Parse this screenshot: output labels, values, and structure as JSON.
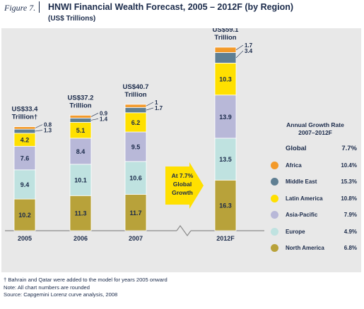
{
  "figure": {
    "label": "Figure 7.",
    "title": "HNWI Financial Wealth Forecast, 2005 – 2012F (by Region)",
    "subtitle": "(US$ Trillions)"
  },
  "chart_data": {
    "type": "bar",
    "stacked": true,
    "title": "HNWI Financial Wealth Forecast, 2005 – 2012F (by Region)",
    "subtitle": "(US$ Trillions)",
    "categories": [
      "2005",
      "2006",
      "2007",
      "2012F"
    ],
    "totals": [
      {
        "line1": "US$33.4",
        "line2": "Trillion†"
      },
      {
        "line1": "US$37.2",
        "line2": "Trillion"
      },
      {
        "line1": "US$40.7",
        "line2": "Trillion"
      },
      {
        "line1": "US$59.1",
        "line2": "Trillion"
      }
    ],
    "series": [
      {
        "name": "North America",
        "color": "#b8a23a",
        "values": [
          10.2,
          11.3,
          11.7,
          16.3
        ]
      },
      {
        "name": "Europe",
        "color": "#bfe2e0",
        "values": [
          9.4,
          10.1,
          10.6,
          13.5
        ]
      },
      {
        "name": "Asia-Pacific",
        "color": "#b8b8d8",
        "values": [
          7.6,
          8.4,
          9.5,
          13.9
        ]
      },
      {
        "name": "Latin America",
        "color": "#ffe000",
        "values": [
          4.2,
          5.1,
          6.2,
          10.3
        ]
      },
      {
        "name": "Middle East",
        "color": "#5f7f93",
        "values": [
          1.3,
          1.4,
          1.7,
          3.4
        ]
      },
      {
        "name": "Africa",
        "color": "#f39a2a",
        "values": [
          0.8,
          0.9,
          1.0,
          1.7
        ]
      }
    ],
    "growth_arrow": {
      "line1": "At 7.7%",
      "line2": "Global",
      "line3": "Growth",
      "color": "#ffe000"
    },
    "legend_placement": "right",
    "grid": false
  },
  "legend": {
    "title_line1": "Annual Growth Rate",
    "title_line2": "2007–2012F",
    "global_label": "Global",
    "global_rate": "7.7%",
    "items": [
      {
        "name": "Africa",
        "rate": "10.4%",
        "color": "#f39a2a"
      },
      {
        "name": "Middle East",
        "rate": "15.3%",
        "color": "#5f7f93"
      },
      {
        "name": "Latin America",
        "rate": "10.8%",
        "color": "#ffe000"
      },
      {
        "name": "Asia-Pacific",
        "rate": "7.9%",
        "color": "#b8b8d8"
      },
      {
        "name": "Europe",
        "rate": "4.9%",
        "color": "#bfe2e0"
      },
      {
        "name": "North America",
        "rate": "6.8%",
        "color": "#b8a23a"
      }
    ]
  },
  "footnotes": {
    "dagger": "† Bahrain and Qatar were added to the model for years 2005 onward",
    "note": "Note:    All chart numbers are rounded",
    "source": "Source:  Capgemini Lorenz curve analysis, 2008"
  }
}
